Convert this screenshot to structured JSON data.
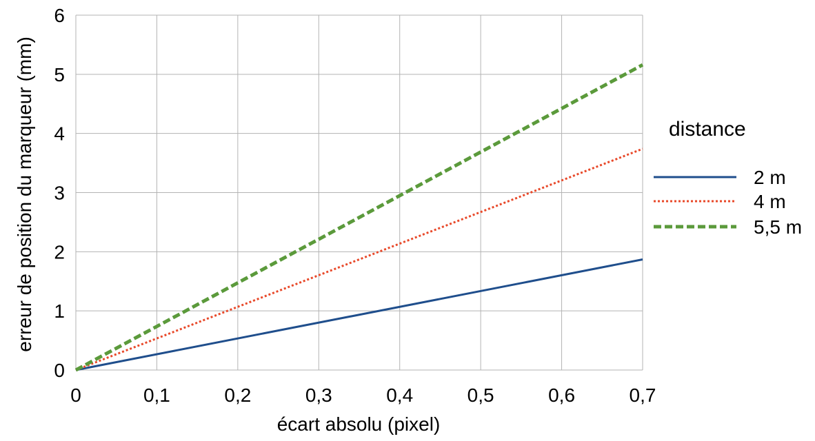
{
  "chart_data": {
    "type": "line",
    "xlabel": "écart absolu (pixel)",
    "ylabel": "erreur de position du marqueur (mm)",
    "xlim": [
      0,
      0.7
    ],
    "ylim": [
      0,
      6
    ],
    "x_ticks": [
      0,
      0.1,
      0.2,
      0.3,
      0.4,
      0.5,
      0.6,
      0.7
    ],
    "x_tick_labels": [
      "0",
      "0,1",
      "0,2",
      "0,3",
      "0,4",
      "0,5",
      "0,6",
      "0,7"
    ],
    "y_ticks": [
      0,
      1,
      2,
      3,
      4,
      5,
      6
    ],
    "y_tick_labels": [
      "0",
      "1",
      "2",
      "3",
      "4",
      "5",
      "6"
    ],
    "grid": true,
    "legend": {
      "title": "distance",
      "position": "right"
    },
    "series": [
      {
        "name": "2 m",
        "color": "#1f4e8c",
        "style": "solid",
        "x": [
          0,
          0.7
        ],
        "y": [
          0,
          1.87
        ]
      },
      {
        "name": "4 m",
        "color": "#e8492a",
        "style": "dotted",
        "x": [
          0,
          0.7
        ],
        "y": [
          0,
          3.74
        ]
      },
      {
        "name": "5,5 m",
        "color": "#5b9a3b",
        "style": "dashed",
        "x": [
          0,
          0.7
        ],
        "y": [
          0,
          5.16
        ]
      }
    ]
  }
}
